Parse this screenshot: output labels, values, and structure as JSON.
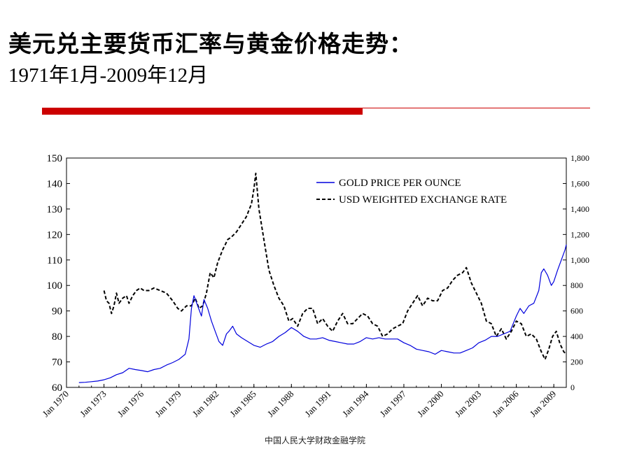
{
  "slide": {
    "title": "美元兑主要货币汇率与黄金价格走势：",
    "subtitle": "1971年1月-2009年12月",
    "footer": "中国人民大学财政金融学院",
    "colors": {
      "accent_red": "#cc0000",
      "gold_series": "#0000dd",
      "usd_series": "#000000"
    }
  },
  "chart_data": {
    "type": "line",
    "title": "",
    "legend": {
      "placement": "top-right",
      "entries": [
        "GOLD PRICE PER OUNCE",
        "USD WEIGHTED EXCHANGE RATE"
      ]
    },
    "x_tick_labels": [
      "Jan 1970",
      "Jan 1973",
      "Jan 1976",
      "Jan 1979",
      "Jan 1982",
      "Jan 1985",
      "Jan 1988",
      "Jan 1991",
      "Jan 1994",
      "Jan 1997",
      "Jan 2000",
      "Jan 2003",
      "Jan 2006",
      "Jan 2009"
    ],
    "x_range": [
      1970.0,
      2010.0
    ],
    "y_left": {
      "range": [
        60,
        150
      ],
      "ticks": [
        "60",
        "70",
        "80",
        "90",
        "100",
        "110",
        "120",
        "130",
        "140",
        "150"
      ]
    },
    "y_right": {
      "range": [
        0,
        1800
      ],
      "ticks": [
        "0",
        "200",
        "400",
        "600",
        "800",
        "1,000",
        "1,200",
        "1,400",
        "1,600",
        "1,800"
      ]
    },
    "grid": false,
    "series": [
      {
        "name": "USD WEIGHTED EXCHANGE RATE",
        "axis": "left",
        "style": "dashed",
        "x": [
          1973.0,
          1973.2,
          1973.4,
          1973.6,
          1973.8,
          1974.0,
          1974.2,
          1974.5,
          1974.8,
          1975.0,
          1975.3,
          1975.6,
          1975.9,
          1976.2,
          1976.6,
          1977.0,
          1977.5,
          1978.0,
          1978.5,
          1978.9,
          1979.2,
          1979.6,
          1980.0,
          1980.3,
          1980.6,
          1980.9,
          1981.2,
          1981.5,
          1981.8,
          1982.1,
          1982.5,
          1982.9,
          1983.2,
          1983.6,
          1984.0,
          1984.4,
          1984.8,
          1985.0,
          1985.15,
          1985.4,
          1985.8,
          1986.2,
          1986.6,
          1987.0,
          1987.4,
          1987.8,
          1988.1,
          1988.5,
          1988.9,
          1989.3,
          1989.7,
          1990.1,
          1990.5,
          1990.9,
          1991.3,
          1991.7,
          1992.1,
          1992.5,
          1992.9,
          1993.3,
          1993.7,
          1994.1,
          1994.5,
          1994.9,
          1995.3,
          1995.7,
          1996.1,
          1996.5,
          1996.9,
          1997.3,
          1997.7,
          1998.1,
          1998.5,
          1998.9,
          1999.3,
          1999.7,
          2000.1,
          2000.5,
          2000.9,
          2001.3,
          2001.7,
          2002.0,
          2002.4,
          2002.8,
          2003.2,
          2003.6,
          2004.0,
          2004.4,
          2004.8,
          2005.2,
          2005.6,
          2006.0,
          2006.4,
          2006.8,
          2007.2,
          2007.6,
          2008.0,
          2008.3,
          2008.6,
          2008.9,
          2009.2,
          2009.5,
          2009.8,
          2010.0
        ],
        "y": [
          98,
          94,
          93,
          89,
          92,
          97,
          93,
          95,
          96,
          93,
          96,
          98,
          99,
          98,
          98,
          99,
          98,
          97,
          94,
          91,
          90,
          92,
          92,
          95,
          91,
          92,
          97,
          105,
          103,
          109,
          114,
          118,
          119,
          121,
          124,
          127,
          132,
          138,
          144,
          130,
          118,
          106,
          100,
          95,
          92,
          86,
          87,
          84,
          89,
          91,
          91,
          85,
          87,
          84,
          82,
          86,
          89,
          85,
          85,
          87,
          89,
          88,
          85,
          84,
          80,
          81,
          83,
          84,
          85,
          90,
          93,
          96,
          92,
          95,
          94,
          94,
          98,
          99,
          102,
          104,
          105,
          107,
          101,
          97,
          93,
          86,
          85,
          80,
          83,
          79,
          82,
          86,
          85,
          80,
          81,
          79,
          74,
          71,
          75,
          80,
          82,
          77,
          74,
          73
        ]
      },
      {
        "name": "GOLD PRICE PER OUNCE",
        "axis": "right",
        "style": "solid",
        "x": [
          1971.0,
          1971.5,
          1972.0,
          1972.5,
          1973.0,
          1973.5,
          1974.0,
          1974.5,
          1975.0,
          1975.5,
          1976.0,
          1976.5,
          1977.0,
          1977.5,
          1978.0,
          1978.5,
          1979.0,
          1979.5,
          1979.8,
          1980.0,
          1980.2,
          1980.5,
          1980.8,
          1981.0,
          1981.3,
          1981.6,
          1981.9,
          1982.2,
          1982.5,
          1982.8,
          1983.0,
          1983.3,
          1983.6,
          1984.0,
          1984.5,
          1985.0,
          1985.5,
          1986.0,
          1986.5,
          1987.0,
          1987.5,
          1988.0,
          1988.5,
          1989.0,
          1989.5,
          1990.0,
          1990.5,
          1991.0,
          1991.5,
          1992.0,
          1992.5,
          1993.0,
          1993.5,
          1994.0,
          1994.5,
          1995.0,
          1995.5,
          1996.0,
          1996.5,
          1997.0,
          1997.5,
          1998.0,
          1998.5,
          1999.0,
          1999.5,
          2000.0,
          2000.5,
          2001.0,
          2001.5,
          2002.0,
          2002.5,
          2003.0,
          2003.5,
          2004.0,
          2004.5,
          2005.0,
          2005.5,
          2006.0,
          2006.3,
          2006.6,
          2007.0,
          2007.4,
          2007.8,
          2008.0,
          2008.2,
          2008.5,
          2008.8,
          2009.0,
          2009.3,
          2009.6,
          2009.9,
          2010.0
        ],
        "y": [
          38,
          40,
          45,
          50,
          60,
          75,
          100,
          115,
          150,
          140,
          132,
          123,
          140,
          150,
          175,
          195,
          220,
          260,
          380,
          620,
          720,
          640,
          560,
          690,
          620,
          520,
          440,
          360,
          330,
          420,
          440,
          480,
          420,
          390,
          360,
          330,
          315,
          340,
          360,
          400,
          430,
          470,
          440,
          400,
          380,
          380,
          390,
          370,
          360,
          350,
          340,
          340,
          360,
          390,
          380,
          390,
          380,
          380,
          380,
          350,
          330,
          300,
          290,
          280,
          260,
          290,
          280,
          270,
          270,
          290,
          310,
          350,
          370,
          400,
          400,
          420,
          440,
          560,
          620,
          580,
          640,
          660,
          760,
          900,
          930,
          880,
          800,
          830,
          920,
          1000,
          1080,
          1120
        ]
      }
    ]
  }
}
